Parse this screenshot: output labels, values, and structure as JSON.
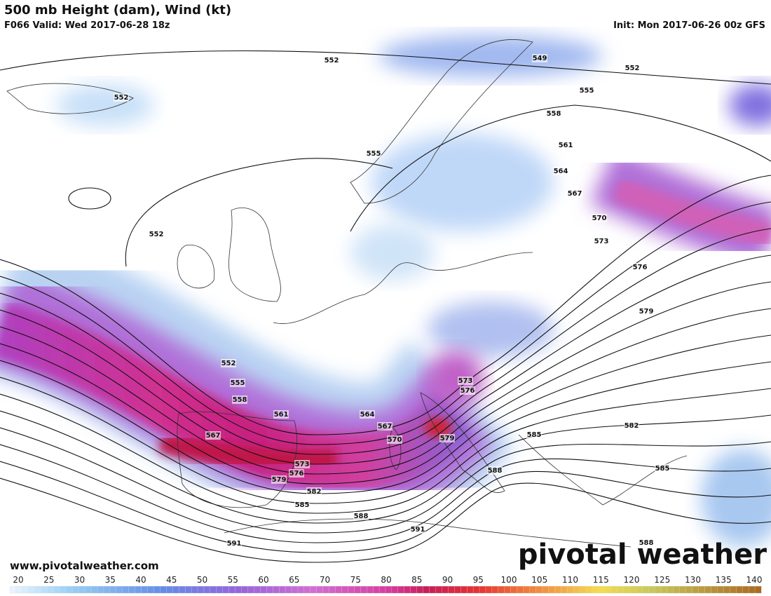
{
  "header": {
    "title": "500 mb Height (dam), Wind (kt)",
    "valid": "F066 Valid: Wed 2017-06-28 18z",
    "init": "Init: Mon 2017-06-26 00z GFS"
  },
  "map": {
    "contour_labels": [
      552,
      549,
      552,
      552,
      555,
      558,
      555,
      561,
      564,
      567,
      570,
      573,
      576,
      579,
      552,
      552,
      555,
      558,
      561,
      564,
      567,
      567,
      570,
      573,
      576,
      579,
      573,
      576,
      579,
      582,
      585,
      588,
      591,
      591,
      588,
      585,
      582,
      585,
      588
    ]
  },
  "footer": {
    "website": "www.pivotalweather.com",
    "logo": "pivotal weather"
  },
  "colorbar": {
    "ticks": [
      20,
      25,
      30,
      35,
      40,
      45,
      50,
      55,
      60,
      65,
      70,
      75,
      80,
      85,
      90,
      95,
      100,
      105,
      110,
      115,
      120,
      125,
      130,
      135,
      140
    ]
  }
}
